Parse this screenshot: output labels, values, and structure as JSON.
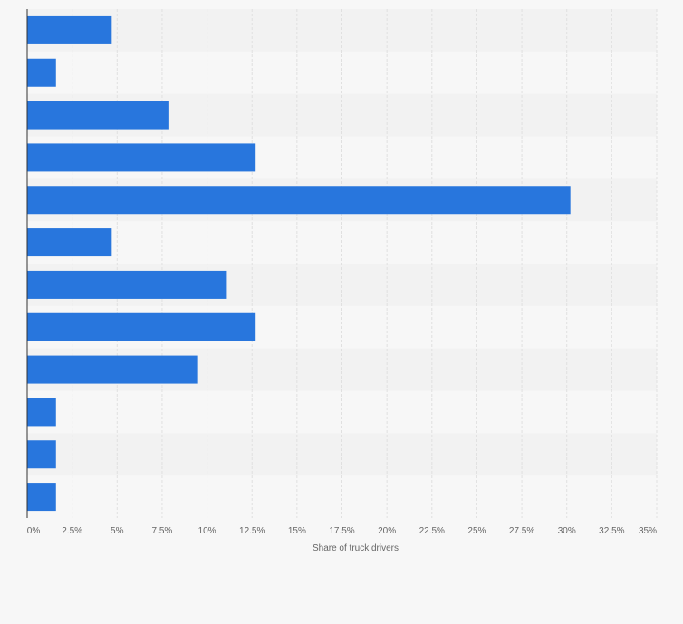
{
  "chart_data": {
    "type": "bar",
    "orientation": "horizontal",
    "title": "",
    "xlabel": "Share of truck drivers",
    "ylabel": "",
    "categories": [
      "",
      "",
      "",
      "",
      "",
      "",
      "",
      "",
      "",
      "",
      "",
      ""
    ],
    "values": [
      4.7,
      1.6,
      7.9,
      12.7,
      30.2,
      4.7,
      11.1,
      12.7,
      9.5,
      1.6,
      1.6,
      1.6
    ],
    "xlim": [
      0,
      35
    ],
    "ticks": [
      "0%",
      "2.5%",
      "5%",
      "7.5%",
      "10%",
      "12.5%",
      "15%",
      "17.5%",
      "20%",
      "22.5%",
      "25%",
      "27.5%",
      "30%",
      "32.5%",
      "35%"
    ],
    "grid": true,
    "legend": "none",
    "colors": {
      "bar": "#2876dd",
      "band_a": "#f2f2f2",
      "band_b": "#f7f7f7",
      "grid": "#e0e0e0",
      "axis": "#333333"
    }
  }
}
